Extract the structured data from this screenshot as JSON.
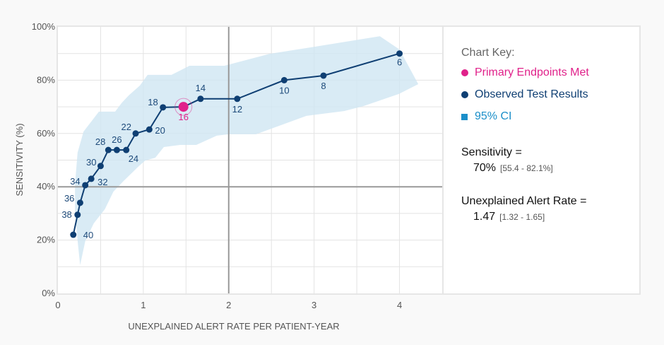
{
  "chart_data": {
    "type": "line",
    "title": "",
    "xlabel": "UNEXPLAINED ALERT RATE PER PATIENT-YEAR",
    "ylabel": "SENSITIVITY (%)",
    "xlim": [
      0,
      4.5
    ],
    "ylim": [
      0,
      100
    ],
    "x_ticks": [
      "0",
      "1",
      "2",
      "3",
      "4"
    ],
    "x_tick_values": [
      0,
      1,
      2,
      3,
      4
    ],
    "y_ticks": [
      "0%",
      "20%",
      "40%",
      "60%",
      "80%",
      "100%"
    ],
    "y_tick_values": [
      0,
      20,
      40,
      60,
      80,
      100
    ],
    "grid": true,
    "reference_lines": {
      "x": 2,
      "y": 40
    },
    "series": [
      {
        "name": "Observed Test Results",
        "color": "#0f3f73",
        "points": [
          {
            "label": "40",
            "x": 0.18,
            "y": 22.0
          },
          {
            "label": "38",
            "x": 0.23,
            "y": 29.5
          },
          {
            "label": "36",
            "x": 0.26,
            "y": 34.0
          },
          {
            "label": "34",
            "x": 0.32,
            "y": 40.6
          },
          {
            "label": "32",
            "x": 0.39,
            "y": 43.0
          },
          {
            "label": "30",
            "x": 0.5,
            "y": 47.8
          },
          {
            "label": "28",
            "x": 0.59,
            "y": 53.8
          },
          {
            "label": "26",
            "x": 0.69,
            "y": 53.8
          },
          {
            "label": "24",
            "x": 0.8,
            "y": 53.8
          },
          {
            "label": "22",
            "x": 0.91,
            "y": 60.0
          },
          {
            "label": "20",
            "x": 1.07,
            "y": 61.5
          },
          {
            "label": "18",
            "x": 1.23,
            "y": 69.8
          },
          {
            "label": "16",
            "x": 1.47,
            "y": 70.0
          },
          {
            "label": "14",
            "x": 1.67,
            "y": 73.0
          },
          {
            "label": "12",
            "x": 2.1,
            "y": 73.0
          },
          {
            "label": "10",
            "x": 2.65,
            "y": 80.0
          },
          {
            "label": "8",
            "x": 3.11,
            "y": 81.7
          },
          {
            "label": "6",
            "x": 4.0,
            "y": 90.0
          }
        ]
      }
    ],
    "highlight": {
      "name": "Primary Endpoints Met",
      "label": "16",
      "x": 1.47,
      "y": 70.0,
      "color": "#e0218a"
    },
    "ci_band": {
      "name": "95% CI",
      "color": "#cfe6f3",
      "upper": [
        [
          0.26,
          10.6
        ],
        [
          0.23,
          19.9
        ],
        [
          0.2,
          30.5
        ],
        [
          0.2,
          40.8
        ],
        [
          0.23,
          52.8
        ],
        [
          0.3,
          60.7
        ],
        [
          0.48,
          68.2
        ],
        [
          0.67,
          68.2
        ],
        [
          0.75,
          71.6
        ],
        [
          0.83,
          74.3
        ],
        [
          0.96,
          78.0
        ],
        [
          1.05,
          82.0
        ],
        [
          1.33,
          82.0
        ],
        [
          1.54,
          85.4
        ],
        [
          1.95,
          85.4
        ],
        [
          2.48,
          89.9
        ],
        [
          2.96,
          92.3
        ],
        [
          3.77,
          96.5
        ],
        [
          4.0,
          91.5
        ],
        [
          4.22,
          78.5
        ]
      ],
      "lower": [
        [
          0.26,
          10.6
        ],
        [
          0.32,
          19.6
        ],
        [
          0.42,
          26.3
        ],
        [
          0.55,
          31.6
        ],
        [
          0.65,
          38.2
        ],
        [
          0.77,
          42.2
        ],
        [
          0.94,
          47.5
        ],
        [
          1.02,
          49.8
        ],
        [
          1.14,
          50.9
        ],
        [
          1.24,
          54.9
        ],
        [
          1.43,
          55.7
        ],
        [
          1.62,
          55.7
        ],
        [
          1.86,
          59.2
        ],
        [
          2.0,
          59.7
        ],
        [
          2.32,
          59.7
        ],
        [
          2.91,
          66.6
        ],
        [
          3.35,
          68.4
        ],
        [
          3.58,
          70.3
        ],
        [
          3.99,
          74.8
        ],
        [
          4.22,
          78.5
        ]
      ]
    }
  },
  "legend": {
    "title": "Chart Key:",
    "items": [
      {
        "label": "Primary Endpoints Met",
        "color": "#e0218a",
        "shape": "circle"
      },
      {
        "label": "Observed Test Results",
        "color": "#0f3f73",
        "shape": "circle"
      },
      {
        "label": "95% CI",
        "color": "#1b8fc9",
        "shape": "square"
      }
    ]
  },
  "stats": {
    "sensitivity_label": "Sensitivity =",
    "sensitivity_value": "70%",
    "sensitivity_ci": "[55.4 - 82.1%]",
    "alert_rate_label": "Unexplained Alert Rate =",
    "alert_rate_value": "1.47",
    "alert_rate_ci": "[1.32 - 1.65]"
  }
}
